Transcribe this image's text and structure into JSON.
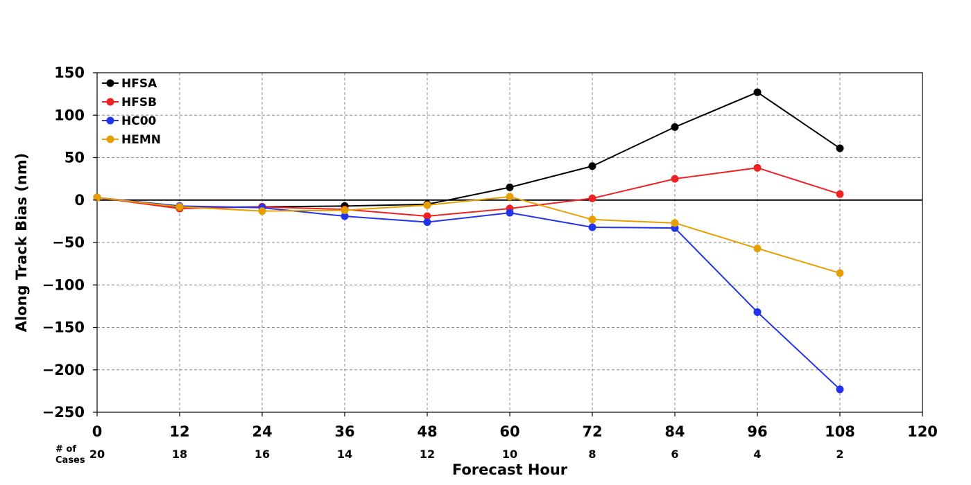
{
  "chart_data": {
    "type": "line",
    "title": "",
    "xlabel": "Forecast Hour",
    "ylabel": "Along Track Bias (nm)",
    "xlim": [
      0,
      120
    ],
    "ylim": [
      -250,
      150
    ],
    "xticks": [
      0,
      12,
      24,
      36,
      48,
      60,
      72,
      84,
      96,
      108,
      120
    ],
    "yticks": [
      150,
      100,
      50,
      0,
      -50,
      -100,
      -150,
      -200,
      -250
    ],
    "x": [
      0,
      12,
      24,
      36,
      48,
      60,
      72,
      84,
      96,
      108
    ],
    "grid": true,
    "legend_position": "top-left",
    "cases_label": "# of Cases",
    "cases": [
      20,
      18,
      16,
      14,
      12,
      10,
      8,
      6,
      4,
      2
    ],
    "series": [
      {
        "name": "HFSA",
        "color": "#000000",
        "values": [
          3,
          -9,
          -8,
          -7,
          -5,
          15,
          40,
          86,
          127,
          61
        ]
      },
      {
        "name": "HFSB",
        "color": "#ee2222",
        "values": [
          3,
          -10,
          -8,
          -11,
          -19,
          -10,
          2,
          25,
          38,
          7
        ]
      },
      {
        "name": "HC00",
        "color": "#2233ee",
        "values": [
          3,
          -7,
          -9,
          -19,
          -26,
          -15,
          -32,
          -33,
          -132,
          -223
        ]
      },
      {
        "name": "HEMN",
        "color": "#e69f00",
        "values": [
          3,
          -8,
          -13,
          -12,
          -6,
          4,
          -23,
          -27,
          -57,
          -86
        ]
      }
    ]
  }
}
